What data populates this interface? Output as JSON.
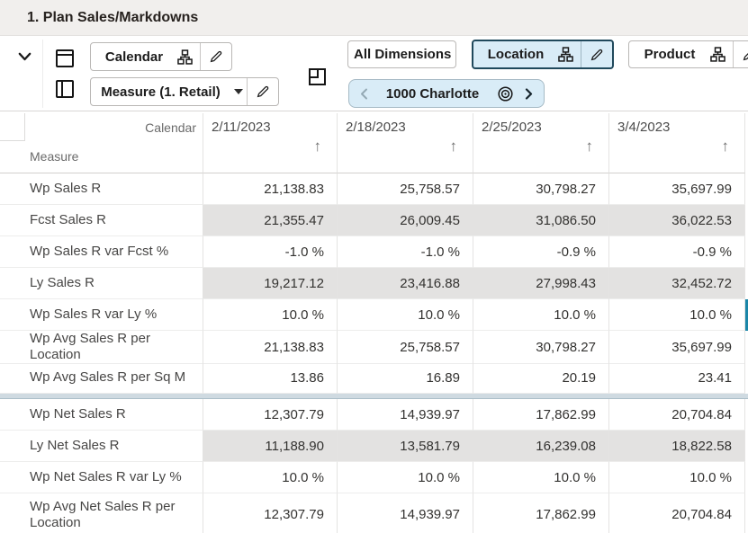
{
  "title": "1. Plan Sales/Markdowns",
  "toolbar": {
    "calendar_button": {
      "label": "Calendar"
    },
    "measure_button": {
      "label": "Measure (1. Retail)"
    },
    "all_dimensions_button": {
      "label": "All Dimensions"
    },
    "location_button": {
      "label": "Location"
    },
    "product_button": {
      "label": "Product"
    },
    "location_nav": {
      "label": "1000 Charlotte"
    }
  },
  "icons": {
    "sort_ascending": "↑"
  },
  "colors": {
    "titlebar_bg": "#f1efed",
    "highlight_blue_fill": "#d9ecf7",
    "shaded_cell": "#e3e2e1",
    "selection_blue": "#1b86a8",
    "group_separator": "#cfdae1"
  },
  "grid": {
    "column_dimension": "Calendar",
    "row_dimension": "Measure",
    "columns": [
      "2/11/2023",
      "2/18/2023",
      "2/25/2023",
      "3/4/2023"
    ],
    "rows": [
      {
        "label": "Wp Sales R",
        "values": [
          "21,138.83",
          "25,758.57",
          "30,798.27",
          "35,697.99"
        ],
        "shaded": false
      },
      {
        "label": "Fcst Sales R",
        "values": [
          "21,355.47",
          "26,009.45",
          "31,086.50",
          "36,022.53"
        ],
        "shaded": true
      },
      {
        "label": "Wp Sales R var Fcst %",
        "values": [
          "-1.0 %",
          "-1.0 %",
          "-0.9 %",
          "-0.9 %"
        ],
        "shaded": false
      },
      {
        "label": "Ly Sales R",
        "values": [
          "19,217.12",
          "23,416.88",
          "27,998.43",
          "32,452.72"
        ],
        "shaded": true
      },
      {
        "label": "Wp Sales R var Ly %",
        "values": [
          "10.0 %",
          "10.0 %",
          "10.0 %",
          "10.0 %"
        ],
        "shaded": false,
        "selected_next": true
      },
      {
        "label": "Wp Avg Sales R per Location",
        "values": [
          "21,138.83",
          "25,758.57",
          "30,798.27",
          "35,697.99"
        ],
        "shaded": false
      },
      {
        "label": "Wp Avg Sales R per Sq M",
        "values": [
          "13.86",
          "16.89",
          "20.19",
          "23.41"
        ],
        "shaded": false,
        "separator_after": true
      },
      {
        "label": "Wp Net Sales R",
        "values": [
          "12,307.79",
          "14,939.97",
          "17,862.99",
          "20,704.84"
        ],
        "shaded": false
      },
      {
        "label": "Ly Net Sales R",
        "values": [
          "11,188.90",
          "13,581.79",
          "16,239.08",
          "18,822.58"
        ],
        "shaded": true
      },
      {
        "label": "Wp Net Sales R var Ly %",
        "values": [
          "10.0 %",
          "10.0 %",
          "10.0 %",
          "10.0 %"
        ],
        "shaded": false
      },
      {
        "label": "Wp Avg Net Sales R per Location",
        "values": [
          "12,307.79",
          "14,939.97",
          "17,862.99",
          "20,704.84"
        ],
        "shaded": false,
        "tall": true
      }
    ]
  }
}
